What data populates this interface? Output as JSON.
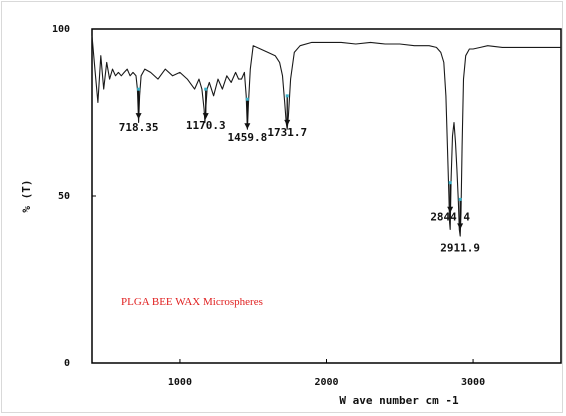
{
  "chart_data": {
    "type": "line",
    "title": "",
    "xlabel": "W ave number cm -1",
    "ylabel": "% (T)",
    "xlim": [
      400,
      3600
    ],
    "ylim": [
      0,
      100
    ],
    "xticks": [
      1000,
      2000,
      3000
    ],
    "xtick_labels": [
      "1000",
      "2000",
      "3000"
    ],
    "yticks": [
      0,
      50,
      100
    ],
    "ytick_labels": [
      "0",
      "50",
      "100"
    ],
    "grid": false,
    "series": [
      {
        "name": "",
        "color": "#1a1a1a",
        "x": [
          400,
          420,
          440,
          460,
          480,
          500,
          520,
          540,
          560,
          580,
          600,
          620,
          640,
          660,
          680,
          700,
          710,
          718,
          725,
          735,
          760,
          800,
          850,
          900,
          950,
          1000,
          1050,
          1100,
          1130,
          1150,
          1165,
          1170,
          1176,
          1185,
          1200,
          1230,
          1260,
          1290,
          1320,
          1350,
          1380,
          1400,
          1420,
          1440,
          1452,
          1460,
          1468,
          1480,
          1500,
          1550,
          1600,
          1650,
          1680,
          1700,
          1715,
          1725,
          1732,
          1740,
          1755,
          1780,
          1820,
          1900,
          2000,
          2100,
          2200,
          2300,
          2400,
          2500,
          2600,
          2700,
          2750,
          2780,
          2800,
          2815,
          2825,
          2835,
          2840,
          2844,
          2850,
          2860,
          2870,
          2880,
          2890,
          2900,
          2906,
          2912,
          2918,
          2925,
          2935,
          2950,
          2975,
          3000,
          3050,
          3100,
          3200,
          3300,
          3400,
          3500,
          3600
        ],
        "y": [
          98,
          88,
          78,
          92,
          82,
          90,
          85,
          88,
          86,
          87,
          86,
          87,
          88,
          86,
          87,
          86,
          82,
          72,
          80,
          86,
          88,
          87,
          85,
          88,
          86,
          87,
          85,
          82,
          85,
          82,
          76,
          72,
          76,
          82,
          84,
          80,
          85,
          82,
          86,
          84,
          87,
          85,
          85,
          87,
          80,
          70,
          78,
          88,
          95,
          94,
          93,
          92,
          90,
          86,
          78,
          72,
          70,
          74,
          85,
          93,
          95,
          96,
          96,
          96,
          95.5,
          96,
          95.5,
          95.5,
          95,
          95,
          94.5,
          93,
          90,
          80,
          65,
          50,
          42,
          40,
          55,
          68,
          72,
          66,
          58,
          48,
          40,
          38,
          45,
          65,
          85,
          92,
          94,
          94,
          94.5,
          95,
          94.5,
          94.5,
          94.5,
          94.5,
          94.5
        ]
      }
    ],
    "peak_labels": [
      {
        "x": 718,
        "text": "718.35",
        "arrow_tip_y": 73
      },
      {
        "x": 1176,
        "text": "1170.3",
        "arrow_tip_y": 73
      },
      {
        "x": 1460,
        "text": "1459.8",
        "arrow_tip_y": 70
      },
      {
        "x": 1732,
        "text": "1731.7",
        "arrow_tip_y": 71
      },
      {
        "x": 2844,
        "text": "2844.4",
        "arrow_tip_y": 45
      },
      {
        "x": 2912,
        "text": "2911.9",
        "arrow_tip_y": 40
      }
    ],
    "annotation": {
      "text": "PLGA BEE WAX Microspheres",
      "color": "#e02020"
    }
  }
}
